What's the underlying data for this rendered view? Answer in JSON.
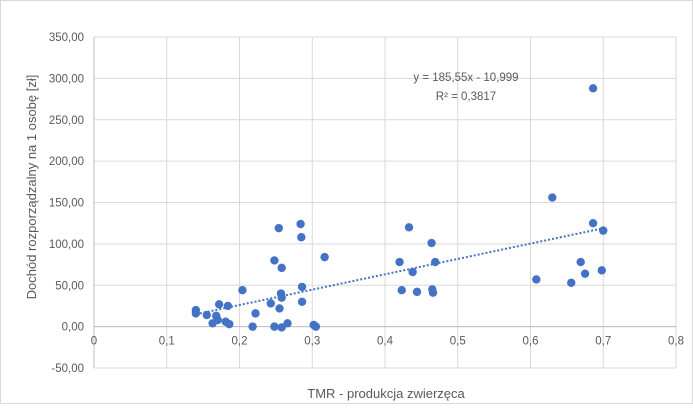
{
  "chart_data": {
    "type": "scatter",
    "xlabel": "TMR - produkcja zwierzęca",
    "ylabel": "Dochód rozporządzalny na 1 osobę [zł]",
    "xlim": [
      0,
      0.8
    ],
    "ylim": [
      -50,
      350
    ],
    "x_ticks": [
      0,
      0.1,
      0.2,
      0.3,
      0.4,
      0.5,
      0.6,
      0.7,
      0.8
    ],
    "x_tick_labels": [
      "0",
      "0,1",
      "0,2",
      "0,3",
      "0,4",
      "0,5",
      "0,6",
      "0,7",
      "0,8"
    ],
    "y_ticks": [
      -50,
      0,
      50,
      100,
      150,
      200,
      250,
      300,
      350
    ],
    "y_tick_labels": [
      "-50,00",
      "0,00",
      "50,00",
      "100,00",
      "150,00",
      "200,00",
      "250,00",
      "300,00",
      "350,00"
    ],
    "grid": true,
    "marker_color": "#4472c4",
    "trendline": {
      "type": "linear",
      "style": "dotted",
      "slope": 185.55,
      "intercept": -10.999,
      "x_range": [
        0.14,
        0.7
      ],
      "equation_label": "y = 185,55x - 10,999",
      "r2_label": "R² = 0,3817"
    },
    "points": [
      {
        "x": 0.14,
        "y": 20
      },
      {
        "x": 0.14,
        "y": 16
      },
      {
        "x": 0.155,
        "y": 14
      },
      {
        "x": 0.163,
        "y": 4
      },
      {
        "x": 0.168,
        "y": 13
      },
      {
        "x": 0.17,
        "y": 8
      },
      {
        "x": 0.172,
        "y": 27
      },
      {
        "x": 0.181,
        "y": 6
      },
      {
        "x": 0.184,
        "y": 25
      },
      {
        "x": 0.186,
        "y": 3
      },
      {
        "x": 0.204,
        "y": 44
      },
      {
        "x": 0.218,
        "y": 0
      },
      {
        "x": 0.222,
        "y": 16
      },
      {
        "x": 0.243,
        "y": 28
      },
      {
        "x": 0.248,
        "y": 80
      },
      {
        "x": 0.248,
        "y": 0
      },
      {
        "x": 0.254,
        "y": 119
      },
      {
        "x": 0.255,
        "y": 22
      },
      {
        "x": 0.257,
        "y": 40
      },
      {
        "x": 0.258,
        "y": 35
      },
      {
        "x": 0.258,
        "y": -1
      },
      {
        "x": 0.258,
        "y": 71
      },
      {
        "x": 0.266,
        "y": 4
      },
      {
        "x": 0.284,
        "y": 124
      },
      {
        "x": 0.285,
        "y": 108
      },
      {
        "x": 0.286,
        "y": 48
      },
      {
        "x": 0.286,
        "y": 30
      },
      {
        "x": 0.302,
        "y": 2
      },
      {
        "x": 0.305,
        "y": 0
      },
      {
        "x": 0.317,
        "y": 84
      },
      {
        "x": 0.42,
        "y": 78
      },
      {
        "x": 0.423,
        "y": 44
      },
      {
        "x": 0.433,
        "y": 120
      },
      {
        "x": 0.438,
        "y": 66
      },
      {
        "x": 0.444,
        "y": 42
      },
      {
        "x": 0.464,
        "y": 101
      },
      {
        "x": 0.465,
        "y": 45
      },
      {
        "x": 0.466,
        "y": 41
      },
      {
        "x": 0.469,
        "y": 78
      },
      {
        "x": 0.608,
        "y": 57
      },
      {
        "x": 0.63,
        "y": 156
      },
      {
        "x": 0.656,
        "y": 53
      },
      {
        "x": 0.669,
        "y": 78
      },
      {
        "x": 0.675,
        "y": 64
      },
      {
        "x": 0.686,
        "y": 125
      },
      {
        "x": 0.686,
        "y": 288
      },
      {
        "x": 0.698,
        "y": 68
      },
      {
        "x": 0.7,
        "y": 116
      }
    ]
  }
}
